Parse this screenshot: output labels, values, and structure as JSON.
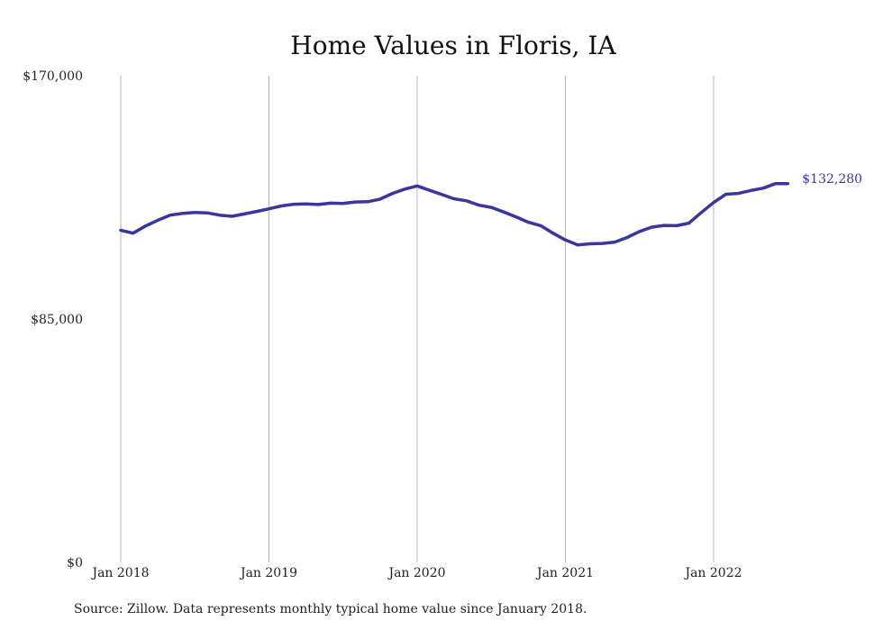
{
  "chart_data": {
    "type": "line",
    "title": "Home Values in Floris, IA",
    "xlabel": "",
    "ylabel": "",
    "ylim": [
      0,
      170000
    ],
    "y_ticks": [
      "$0",
      "$85,000",
      "$170,000"
    ],
    "y_tick_values": [
      0,
      85000,
      170000
    ],
    "x_ticks": [
      "Jan 2018",
      "Jan 2019",
      "Jan 2020",
      "Jan 2021",
      "Jan 2022"
    ],
    "x_tick_months": [
      "2018-01",
      "2019-01",
      "2020-01",
      "2021-01",
      "2022-01"
    ],
    "grid": "vertical",
    "color": "#3b35a0",
    "end_label": "$132,280",
    "series": [
      {
        "x": [
          "2018-01",
          "2018-02",
          "2018-03",
          "2018-04",
          "2018-05",
          "2018-06",
          "2018-07",
          "2018-08",
          "2018-09",
          "2018-10",
          "2018-11",
          "2018-12",
          "2019-01",
          "2019-02",
          "2019-03",
          "2019-04",
          "2019-05",
          "2019-06",
          "2019-07",
          "2019-08",
          "2019-09",
          "2019-10",
          "2019-11",
          "2019-12",
          "2020-01",
          "2020-02",
          "2020-03",
          "2020-04",
          "2020-05",
          "2020-06",
          "2020-07",
          "2020-08",
          "2020-09",
          "2020-10",
          "2020-11",
          "2020-12",
          "2021-01",
          "2021-02",
          "2021-03",
          "2021-04",
          "2021-05",
          "2021-06",
          "2021-07",
          "2021-08",
          "2021-09",
          "2021-10",
          "2021-11",
          "2021-12",
          "2022-01",
          "2022-02",
          "2022-03",
          "2022-04",
          "2022-05",
          "2022-06",
          "2022-07"
        ],
        "y": [
          116000,
          115000,
          117500,
          119500,
          121300,
          121900,
          122200,
          122100,
          121300,
          120900,
          121700,
          122600,
          123500,
          124500,
          125100,
          125200,
          125000,
          125500,
          125400,
          125900,
          126000,
          126900,
          128900,
          130400,
          131500,
          130000,
          128500,
          127000,
          126300,
          124800,
          124000,
          122400,
          120700,
          118800,
          117600,
          115000,
          112600,
          110900,
          111300,
          111400,
          111900,
          113500,
          115600,
          117100,
          117700,
          117600,
          118500,
          122200,
          125700,
          128600,
          128900,
          129900,
          130700,
          132300,
          132280
        ]
      }
    ]
  },
  "source_text": "Source: Zillow. Data represents monthly typical home value since January 2018."
}
